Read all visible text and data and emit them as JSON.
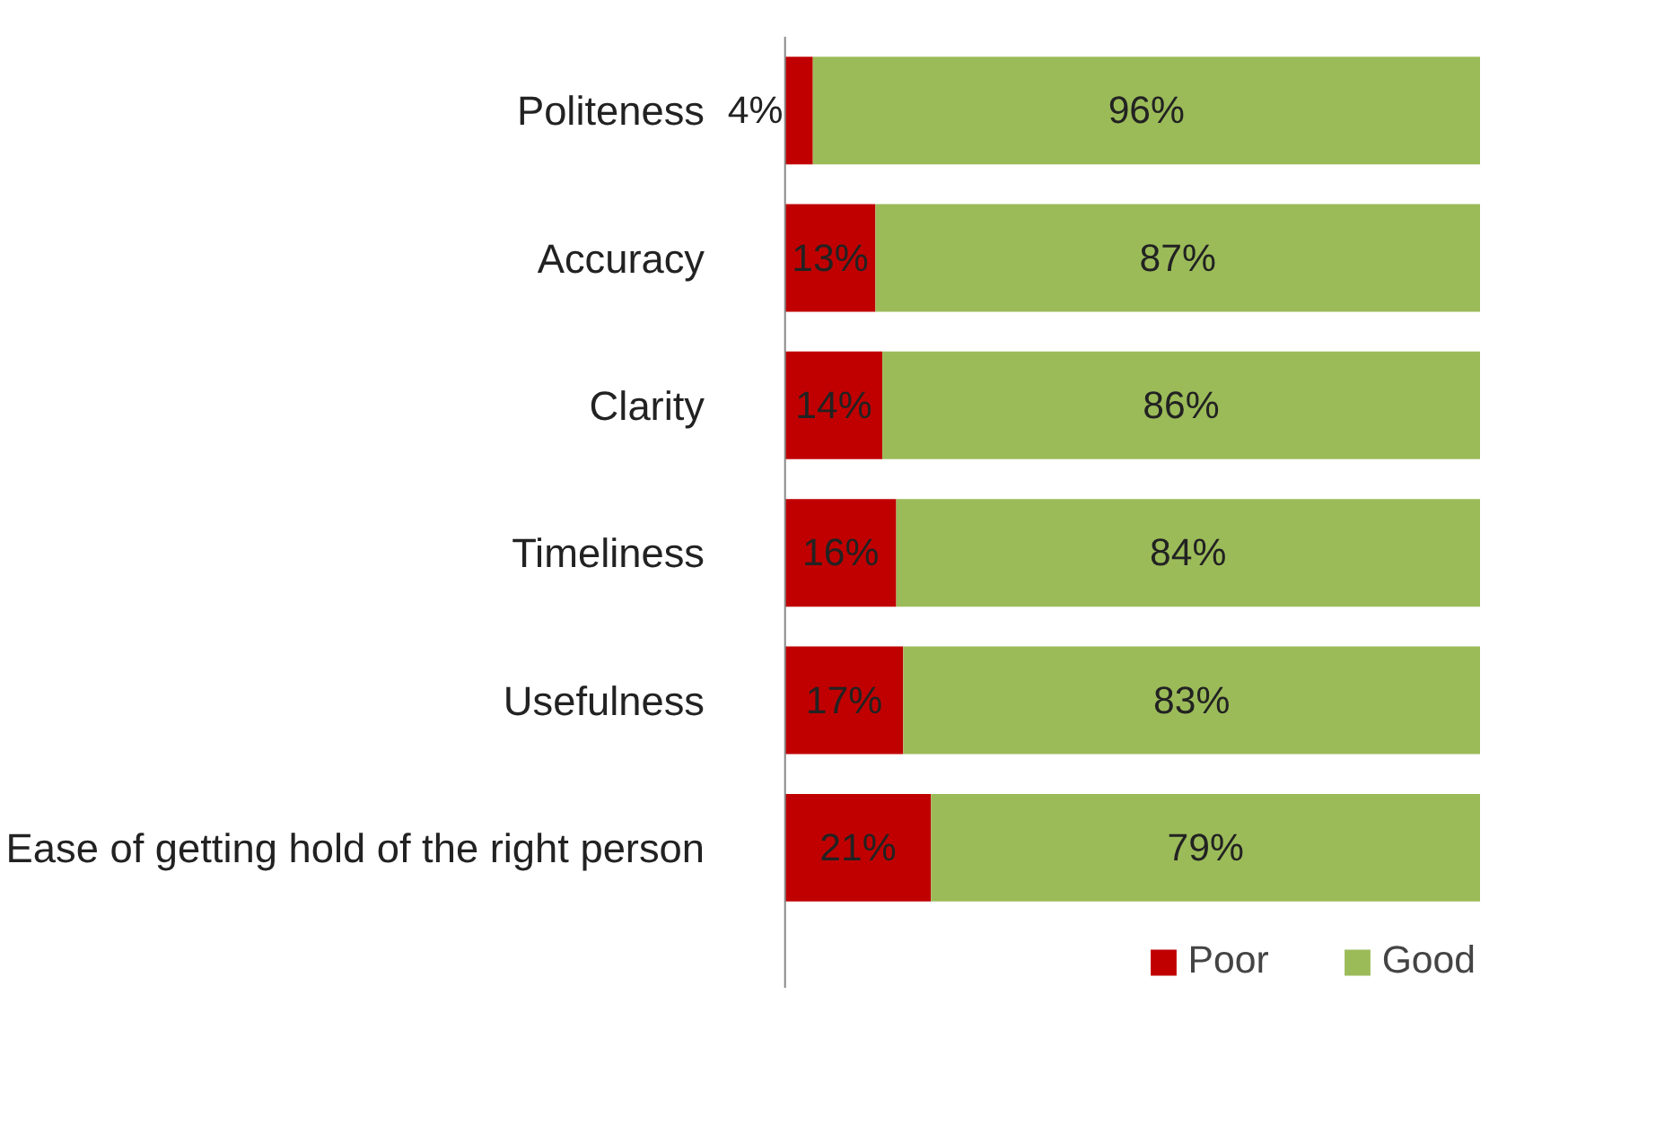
{
  "chart_data": {
    "type": "bar",
    "orientation": "horizontal",
    "stacked": true,
    "grid": false,
    "data_labels": true,
    "legend": "bottom right",
    "categories": [
      "Politeness",
      "Accuracy",
      "Clarity",
      "Timeliness",
      "Usefulness",
      "Ease of getting hold of the right person"
    ],
    "series": [
      {
        "name": "Poor",
        "color": "#c00000",
        "values": [
          4,
          13,
          14,
          16,
          17,
          21
        ],
        "value_labels": [
          "4%",
          "13%",
          "14%",
          "16%",
          "17%",
          "21%"
        ]
      },
      {
        "name": "Good",
        "color": "#9bbb59",
        "values": [
          96,
          87,
          86,
          84,
          83,
          79
        ],
        "value_labels": [
          "96%",
          "87%",
          "86%",
          "84%",
          "83%",
          "79%"
        ]
      }
    ]
  }
}
